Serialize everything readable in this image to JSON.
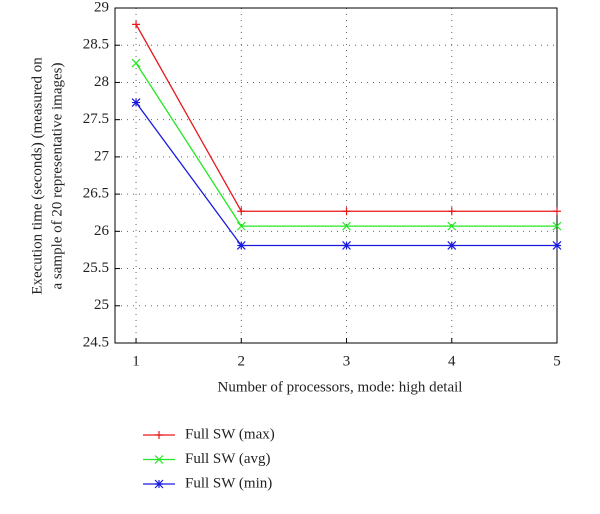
{
  "chart_data": {
    "type": "line",
    "x_label": "Number of processors, mode: high detail",
    "y_label": [
      "Execution time (seconds) (measured on",
      "a sample of 20 representative images)"
    ],
    "x": [
      1,
      2,
      3,
      4,
      5
    ],
    "series": [
      {
        "name": "Full SW (max)",
        "color": "#e8191c",
        "marker": "plus",
        "values": [
          28.78,
          26.27,
          26.27,
          26.27,
          26.27
        ]
      },
      {
        "name": "Full SW (avg)",
        "color": "#22e822",
        "marker": "x",
        "values": [
          28.26,
          26.07,
          26.07,
          26.07,
          26.07
        ]
      },
      {
        "name": "Full SW (min)",
        "color": "#1a1ae0",
        "marker": "star",
        "values": [
          27.73,
          25.81,
          25.81,
          25.81,
          25.81
        ]
      }
    ],
    "xlim": [
      0.8,
      5
    ],
    "xticks": [
      1,
      2,
      3,
      4,
      5
    ],
    "ylim": [
      24.5,
      29
    ],
    "yticks": [
      24.5,
      25,
      25.5,
      26,
      26.5,
      27,
      27.5,
      28,
      28.5,
      29
    ],
    "grid": true,
    "legend": "below"
  }
}
